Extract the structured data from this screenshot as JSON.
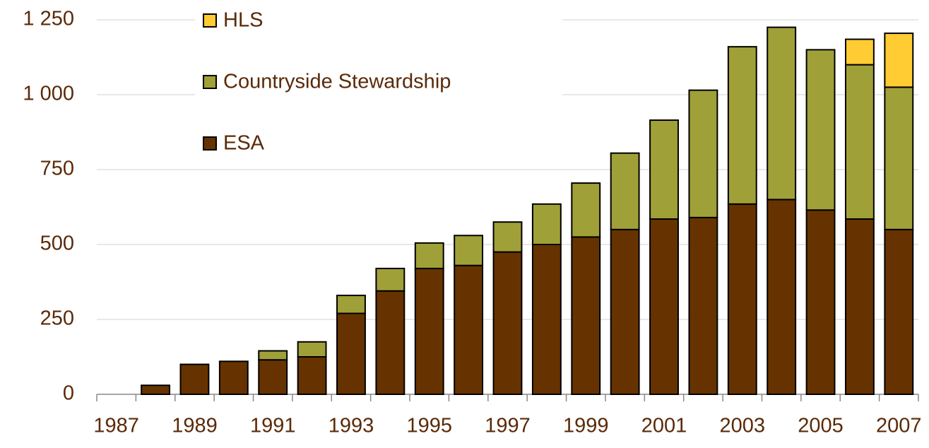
{
  "chart_data": {
    "type": "stacked_bar",
    "categories": [
      "1987",
      null,
      "1989",
      null,
      "1991",
      null,
      "1993",
      null,
      "1995",
      null,
      "1997",
      null,
      "1999",
      null,
      "2001",
      null,
      "2003",
      null,
      "2005",
      null,
      "2007"
    ],
    "series": [
      {
        "name": "ESA",
        "color": "#663300",
        "values": [
          0,
          30,
          100,
          110,
          115,
          125,
          270,
          345,
          420,
          430,
          475,
          500,
          525,
          550,
          585,
          590,
          635,
          650,
          615,
          585,
          550
        ]
      },
      {
        "name": "Countryside Stewardship",
        "color": "#a0a038",
        "values": [
          0,
          0,
          0,
          0,
          30,
          50,
          60,
          75,
          85,
          100,
          100,
          135,
          180,
          255,
          330,
          425,
          525,
          575,
          535,
          515,
          475
        ]
      },
      {
        "name": "HLS",
        "color": "#ffcc33",
        "values": [
          0,
          0,
          0,
          0,
          0,
          0,
          0,
          0,
          0,
          0,
          0,
          0,
          0,
          0,
          0,
          0,
          0,
          0,
          0,
          85,
          180
        ]
      }
    ],
    "ylim": [
      0,
      1250
    ],
    "yticks": [
      0,
      250,
      500,
      750,
      {
        "value": 1000,
        "label": "1 000"
      },
      {
        "value": 1250,
        "label": "1 250"
      }
    ],
    "grid": true,
    "legend": "top-left"
  }
}
